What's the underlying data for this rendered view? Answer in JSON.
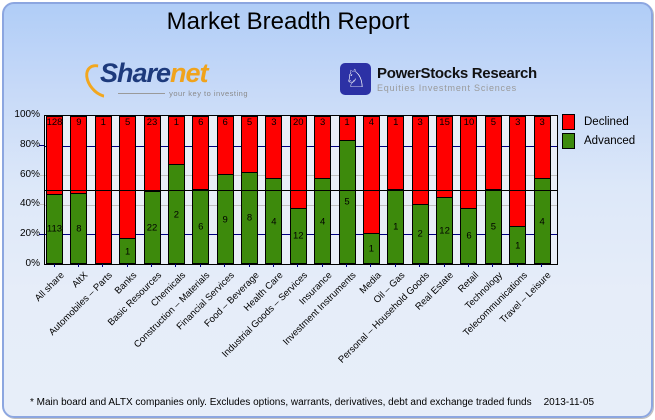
{
  "title": "Market Breadth Report",
  "logos": {
    "sharenet": {
      "word_primary": "Share",
      "word_secondary": "net",
      "tagline": "your key to investing"
    },
    "powerstocks": {
      "name": "PowerStocks Research",
      "subtitle": "Equities Investment Sciences",
      "icon": "knight-chess-icon",
      "icon_glyph": "♘"
    }
  },
  "chart_data": {
    "type": "bar",
    "subtype": "percent-stacked-column",
    "title": "Market Breadth Report",
    "categories": [
      "All share",
      "AltX",
      "Automobiles – Parts",
      "Banks",
      "Basic Resources",
      "Chemicals",
      "Construction – Materials",
      "Financial Services",
      "Food – Beverage",
      "Health Care",
      "Industrial Goods – Services",
      "Insurance",
      "Investment Instruments",
      "Media",
      "Oil – Gas",
      "Personal – Household Goods",
      "Real Estate",
      "Retail",
      "Technology",
      "Telecommunications",
      "Travel – Leisure"
    ],
    "series": [
      {
        "name": "Declined",
        "color": "#ff0000",
        "values": [
          128,
          9,
          1,
          5,
          23,
          1,
          6,
          6,
          5,
          3,
          20,
          3,
          1,
          4,
          1,
          3,
          15,
          10,
          5,
          3,
          3
        ]
      },
      {
        "name": "Advanced",
        "color": "#3d8a0c",
        "values": [
          113,
          8,
          0,
          1,
          22,
          2,
          6,
          9,
          8,
          4,
          12,
          4,
          5,
          1,
          1,
          2,
          12,
          6,
          5,
          1,
          4
        ]
      }
    ],
    "xlabel": "",
    "ylabel": "",
    "y_ticks": [
      "0%",
      "20%",
      "40%",
      "60%",
      "80%",
      "100%"
    ],
    "ylim": [
      0,
      100
    ],
    "reference_line_pct": 50,
    "legend_position": "right",
    "grid": {
      "navy_lines_pct": [
        20,
        80
      ],
      "gray_lines_pct": [
        40,
        60
      ]
    }
  },
  "footer": {
    "note": "* Main board and ALTX companies only. Excludes options, warrants, derivatives, debt and exchange traded funds",
    "date": "2013-11-05"
  },
  "colors": {
    "declined": "#ff0000",
    "advanced": "#3d8a0c",
    "grid_navy": "#000080",
    "grid_gray": "#c0c0c0",
    "reference_line": "#000000",
    "frame_border": "#8ca6e0",
    "plot_background": "#e9eef7"
  }
}
